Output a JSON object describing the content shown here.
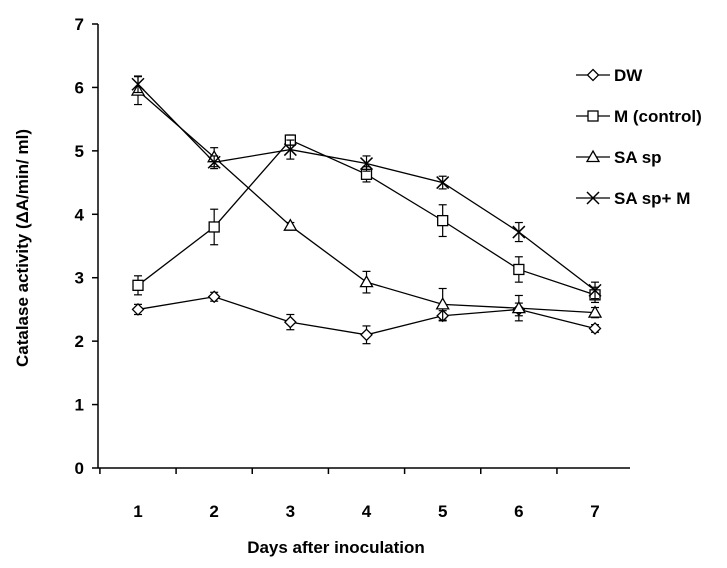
{
  "chart_data": {
    "type": "line",
    "title": "",
    "xlabel": "Days after inoculation",
    "ylabel": "Catalase activity (ΔA/min/ ml)",
    "categories": [
      "1",
      "2",
      "3",
      "4",
      "5",
      "6",
      "7"
    ],
    "x": [
      1,
      2,
      3,
      4,
      5,
      6,
      7
    ],
    "ylim": [
      0,
      7
    ],
    "yticks": [
      "0",
      "1",
      "2",
      "3",
      "4",
      "5",
      "6",
      "7"
    ],
    "grid": false,
    "legend_position": "right",
    "series": [
      {
        "name": "DW",
        "marker": "diamond",
        "values": [
          2.5,
          2.7,
          2.3,
          2.1,
          2.4,
          2.5,
          2.2
        ],
        "errors": [
          0.08,
          0.07,
          0.12,
          0.14,
          0.08,
          0.1,
          0.06
        ]
      },
      {
        "name": "M (control)",
        "marker": "square",
        "values": [
          2.88,
          3.8,
          5.17,
          4.63,
          3.9,
          3.13,
          2.73
        ],
        "errors": [
          0.15,
          0.28,
          0.08,
          0.12,
          0.25,
          0.2,
          0.12
        ]
      },
      {
        "name": "SA sp",
        "marker": "triangle",
        "values": [
          5.95,
          4.9,
          3.82,
          2.93,
          2.58,
          2.52,
          2.45
        ],
        "errors": [
          0.22,
          0.15,
          0.05,
          0.17,
          0.25,
          0.2,
          0.08
        ]
      },
      {
        "name": "SA sp+ M",
        "marker": "x",
        "values": [
          6.05,
          4.82,
          5.02,
          4.8,
          4.5,
          3.72,
          2.8
        ],
        "errors": [
          0.13,
          0.1,
          0.15,
          0.12,
          0.1,
          0.15,
          0.13
        ]
      }
    ]
  }
}
